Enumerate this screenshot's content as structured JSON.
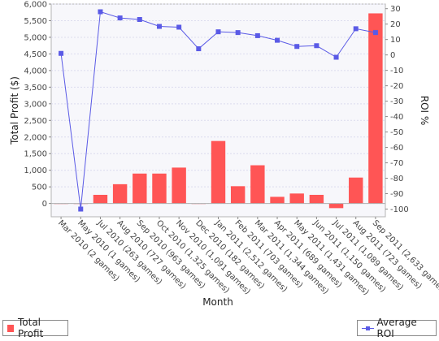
{
  "chart_data": {
    "type": "bar",
    "categories": [
      "Mar 2010 (2 games)",
      "May 2010 (1 games)",
      "Jul 2010 (263 games)",
      "Aug 2010 (727 games)",
      "Sep 2010 (963 games)",
      "Oct 2010 (1,325 games)",
      "Nov 2010 (1,091 games)",
      "Dec 2010 (182 games)",
      "Jan 2011 (2,512 games)",
      "Feb 2011 (703 games)",
      "Mar 2011 (1,344 games)",
      "Apr 2011 (689 games)",
      "May 2011 (1,431 games)",
      "Jun 2011 (1,150 games)",
      "Jul 2011 (1,089 games)",
      "Aug 2011 (723 games)",
      "Sep 2011 (2,633 games)"
    ],
    "series": [
      {
        "name": "Total Profit",
        "type": "bar",
        "axis": "left",
        "color": "#ff5555",
        "values": [
          0,
          0,
          260,
          580,
          900,
          900,
          1080,
          0,
          1880,
          520,
          1150,
          200,
          300,
          260,
          -140,
          780,
          5720
        ]
      },
      {
        "name": "Average ROI",
        "type": "line",
        "axis": "right",
        "color": "#5a5ae6",
        "values": [
          1,
          -100,
          28,
          24,
          23,
          18.5,
          18,
          4,
          15,
          14.5,
          12.5,
          9.5,
          5.5,
          6,
          -1.5,
          17,
          14.5
        ]
      }
    ],
    "xlabel": "Month",
    "ylabel": "Total Profit ($)",
    "y2label": "ROI %",
    "ylim": [
      -400,
      6000
    ],
    "y2lim": [
      -105,
      33
    ],
    "yticks": [
      0,
      500,
      1000,
      1500,
      2000,
      2500,
      3000,
      3500,
      4000,
      4500,
      5000,
      5500,
      6000
    ],
    "yticklabels": [
      "0",
      "500",
      "1,000",
      "1,500",
      "2,000",
      "2,500",
      "3,000",
      "3,500",
      "4,000",
      "4,500",
      "5,000",
      "5,500",
      "6,000"
    ],
    "y2ticks": [
      30,
      20,
      10,
      0,
      -10,
      -20,
      -30,
      -40,
      -50,
      -60,
      -70,
      -80,
      -90,
      -100
    ],
    "grid": true,
    "legend_placement": "bottom"
  }
}
